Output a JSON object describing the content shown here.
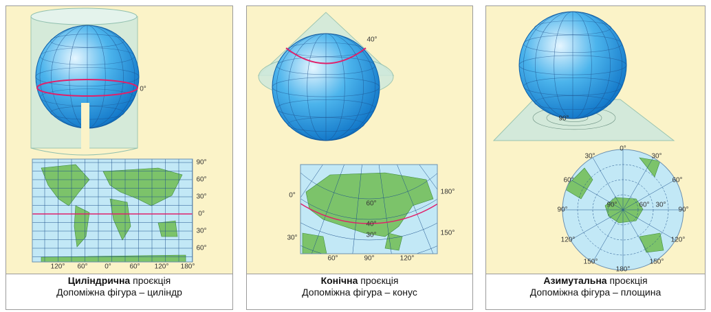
{
  "panels": [
    {
      "caption_bold": "Циліндрична",
      "caption_rest": "проєкція",
      "subtitle": "Допоміжна фігура – циліндр",
      "labels": [
        "0°",
        "90°",
        "60°",
        "30°",
        "0°",
        "30°",
        "60°",
        "120°",
        "60°",
        "0°",
        "60°",
        "120°",
        "180°"
      ]
    },
    {
      "caption_bold": "Конічна",
      "caption_rest": "проєкція",
      "subtitle": "Допоміжна фігура – конус",
      "labels": [
        "40°",
        "0°",
        "30°",
        "180°",
        "150°",
        "60°",
        "40°",
        "30°",
        "60°",
        "90°",
        "120°"
      ]
    },
    {
      "caption_bold": "Азимутальна",
      "caption_rest": "проєкція",
      "subtitle": "Допоміжна фігура – площина",
      "labels": [
        "90°",
        "0°",
        "30°",
        "30°",
        "60°",
        "60°",
        "90°",
        "90°",
        "120°",
        "120°",
        "150°",
        "150°",
        "180°",
        "90°",
        "60°",
        "30°"
      ]
    }
  ]
}
